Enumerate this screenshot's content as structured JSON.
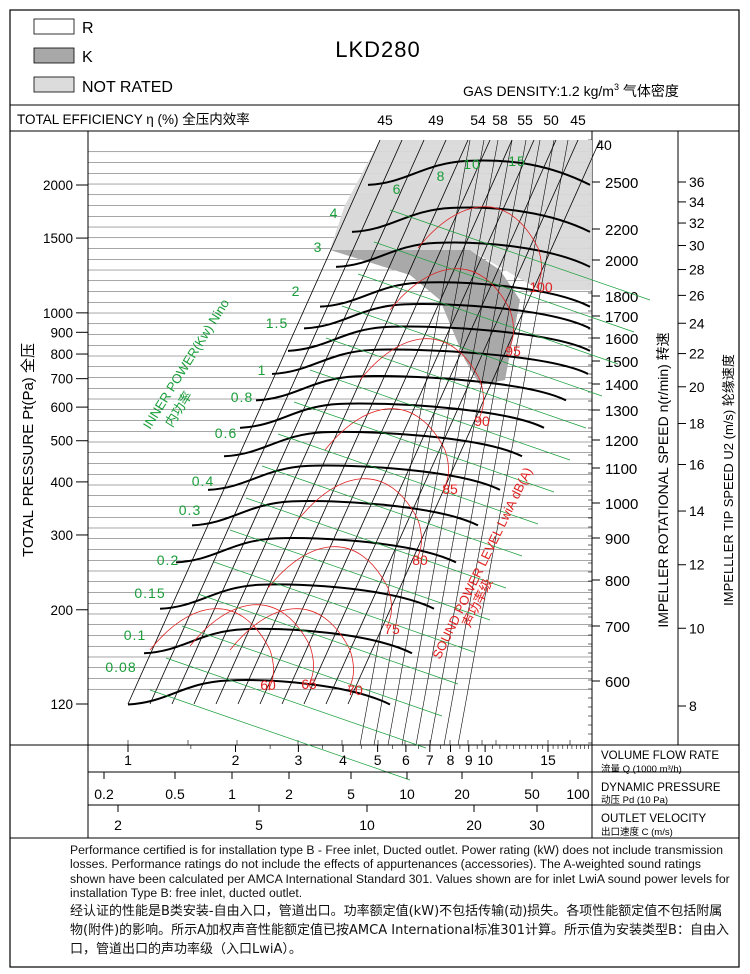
{
  "legend": [
    {
      "key": "R",
      "fill": "#ffffff"
    },
    {
      "key": "K",
      "fill": "#a8a8a8"
    },
    {
      "key": "NOT RATED",
      "fill": "#dcdcdc"
    }
  ],
  "model": "LKD280",
  "gas_density_prefix": "GAS DENSITY:1.2 kg/m",
  "gas_density_sup": "3",
  "gas_density_cn": "气体密度",
  "efficiency_title": "TOTAL EFFICIENCY η (%) 全压内效率",
  "colors": {
    "black": "#000000",
    "red": "#e02020",
    "green": "#1a9e3a",
    "grey_zone": "#a9a9a9",
    "light_zone": "#d9d9d9"
  },
  "chart_data": {
    "type": "line",
    "title": "LKD280",
    "x_axes": {
      "volume_flow": {
        "label": "VOLUME FLOW RATE",
        "label_cn": "流量 Q (1000 m³/h)",
        "ticks": [
          "1",
          "2",
          "3",
          "4",
          "5",
          "6",
          "7",
          "8",
          "9",
          "10",
          "15"
        ],
        "scale": "log"
      },
      "dynamic_pressure": {
        "label": "DYNAMIC PRESSURE",
        "label_cn": "动压 Pd (10 Pa)",
        "ticks": [
          "0.2",
          "0.5",
          "1",
          "2",
          "5",
          "10",
          "20",
          "50",
          "100"
        ],
        "scale": "log"
      },
      "outlet_velocity": {
        "label": "OUTLET VELOCITY",
        "label_cn": "出口速度 C (m/s)",
        "ticks": [
          "2",
          "5",
          "10",
          "20",
          "30"
        ],
        "scale": "log"
      }
    },
    "y_axis": {
      "label": "TOTAL PRESSURE Pt(Pa) 全压",
      "ticks": [
        "120",
        "200",
        "300",
        "400",
        "500",
        "600",
        "700",
        "800",
        "900",
        "1000",
        "1500",
        "2000"
      ],
      "scale": "log",
      "ylim": [
        110,
        2600
      ]
    },
    "right_axes": {
      "speed": {
        "label": "IMPELLER ROTATIONAL SPEED n(r/min) 转速",
        "ticks": [
          "2500",
          "2200",
          "2000",
          "1800",
          "1700",
          "1600",
          "1500",
          "1400",
          "1300",
          "1200",
          "1100",
          "1000",
          "900",
          "800",
          "700",
          "600"
        ]
      },
      "tip_speed": {
        "label": "IMPELLLER TIP SPEED U2 (m/s) 轮缘速度",
        "ticks": [
          "36",
          "34",
          "32",
          "30",
          "28",
          "26",
          "24",
          "22",
          "20",
          "18",
          "16",
          "14",
          "12",
          "10",
          "8"
        ]
      }
    },
    "efficiency_ticks": [
      "45",
      "49",
      "54",
      "58",
      "55",
      "50",
      "45",
      "40"
    ],
    "inner_power": {
      "label": "INNER POWER(Kw) Nino",
      "label_cn": "内功率",
      "values": [
        "0.08",
        "0.1",
        "0.15",
        "0.2",
        "0.3",
        "0.4",
        "0.6",
        "0.8",
        "1",
        "1.5",
        "2",
        "3",
        "4",
        "6",
        "8",
        "10",
        "15"
      ]
    },
    "sound_power": {
      "label": "SOUND POWER LEVEL LwiA dB(A)",
      "label_cn": "声功率级",
      "values": [
        "60",
        "65",
        "70",
        "75",
        "80",
        "85",
        "90",
        "95",
        "100"
      ]
    },
    "speed_curves": [
      {
        "rpm": 600,
        "pressure": 125
      },
      {
        "rpm": 700,
        "pressure": 165
      },
      {
        "rpm": 800,
        "pressure": 210
      },
      {
        "rpm": 900,
        "pressure": 270
      },
      {
        "rpm": 1000,
        "pressure": 330
      },
      {
        "rpm": 1100,
        "pressure": 400
      },
      {
        "rpm": 1200,
        "pressure": 480
      },
      {
        "rpm": 1300,
        "pressure": 560
      },
      {
        "rpm": 1400,
        "pressure": 650
      },
      {
        "rpm": 1500,
        "pressure": 750
      },
      {
        "rpm": 1600,
        "pressure": 850
      },
      {
        "rpm": 1700,
        "pressure": 960
      },
      {
        "rpm": 1800,
        "pressure": 1080
      },
      {
        "rpm": 2000,
        "pressure": 1340
      },
      {
        "rpm": 2200,
        "pressure": 1620
      },
      {
        "rpm": 2500,
        "pressure": 2090
      }
    ]
  },
  "notes": {
    "en": "Performance certified is for installation type B - Free inlet, Ducted outlet. Power rating (kW) does not include transmission losses. Performance ratings do not include the effects of appurtenances (accessories). The A-weighted sound ratings shown have been calculated per AMCA International Standard 301. Values shown are for inlet LwiA sound power levels for installation Type B: free inlet, ducted outlet.",
    "cn": "经认证的性能是B类安装-自由入口，管道出口。功率额定值(kW)不包括传输(动)损失。各项性能额定值不包括附属物(附件)的影响。所示A加权声音性能额定值已按AMCA International标准301计算。所示值为安装类型B：自由入口，管道出口的声功率级（入口LwiA）。"
  }
}
